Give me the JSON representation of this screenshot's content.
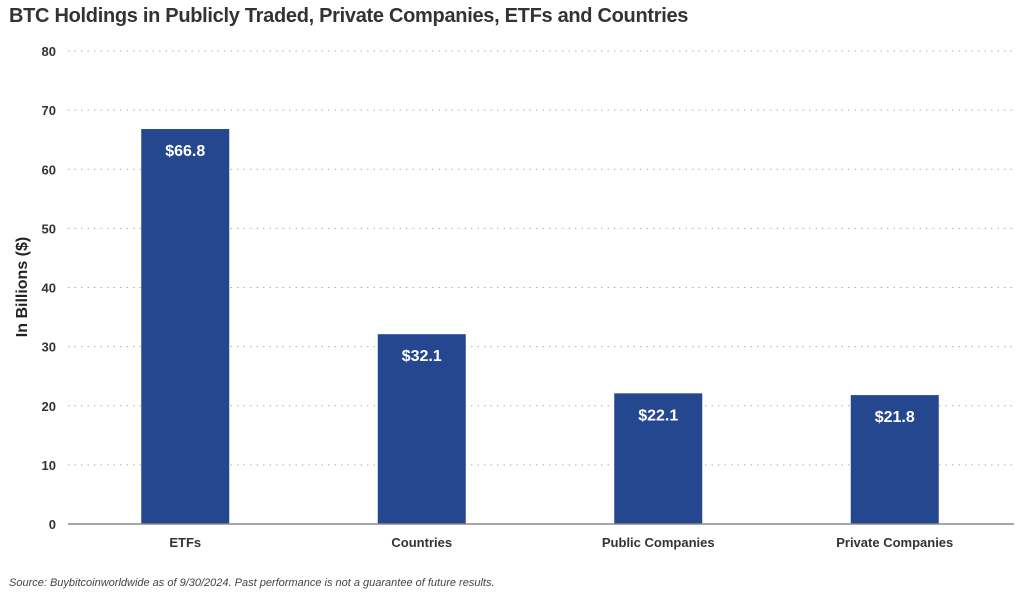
{
  "chart_data": {
    "type": "bar",
    "title": "BTC Holdings in Publicly Traded, Private Companies, ETFs and Countries",
    "xlabel": "",
    "ylabel": "In Billions ($)",
    "ylim": [
      0,
      80
    ],
    "yticks": [
      0,
      10,
      20,
      30,
      40,
      50,
      60,
      70,
      80
    ],
    "grid": true,
    "categories": [
      "ETFs",
      "Countries",
      "Public Companies",
      "Private Companies"
    ],
    "values": [
      66.8,
      32.1,
      22.1,
      21.8
    ],
    "data_labels": [
      "$66.8",
      "$32.1",
      "$22.1",
      "$21.8"
    ],
    "bar_color": "#24478f",
    "footnote": "Source: Buybitcoinworldwide as of 9/30/2024. Past performance is not a guarantee of future results."
  }
}
